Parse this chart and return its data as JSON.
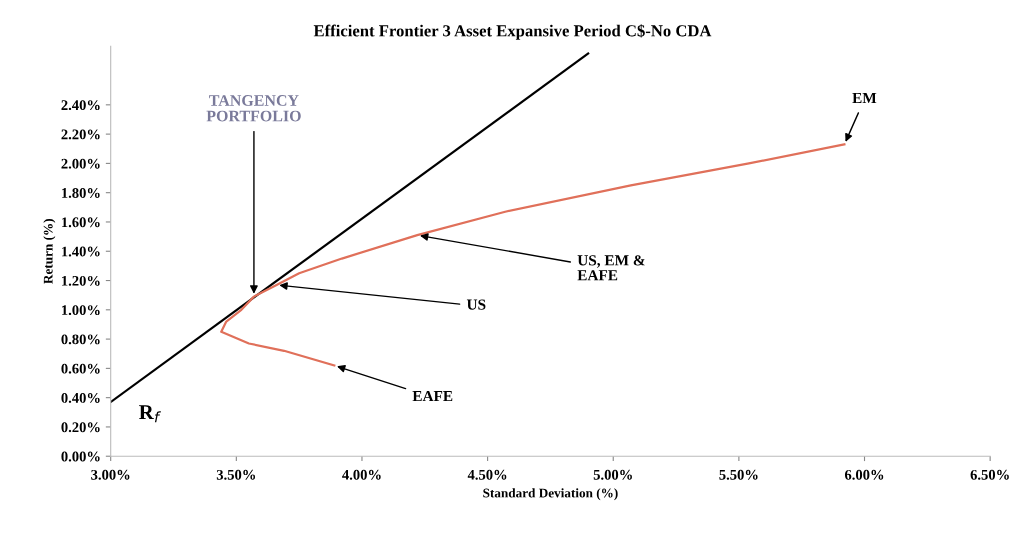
{
  "chart_data": {
    "type": "line",
    "title": "Efficient Frontier 3 Asset Expansive Period C$-No CDA",
    "xlabel": "Standard Deviation (%)",
    "ylabel": "Return (%)",
    "series": [
      {
        "color": "#000000",
        "x": [
          3.0,
          4.9
        ],
        "values": [
          0.37,
          2.75
        ]
      },
      {
        "color": "#e0705a",
        "x": [
          3.89,
          3.69,
          3.55,
          3.44,
          3.46,
          3.52,
          3.57,
          3.66,
          3.75,
          3.92,
          4.22,
          4.57,
          5.07,
          5.54,
          5.92
        ],
        "values": [
          0.62,
          0.72,
          0.77,
          0.85,
          0.92,
          1.0,
          1.09,
          1.17,
          1.25,
          1.35,
          1.51,
          1.67,
          1.85,
          2.0,
          2.13
        ]
      }
    ],
    "annotations": [
      {
        "text": "TANGENCY\nPORTFOLIO",
        "x": 3.57,
        "y": 1.09
      },
      {
        "text": "US",
        "x": 3.66,
        "y": 1.17
      },
      {
        "text": "US, EM &\nEAFE",
        "x": 4.22,
        "y": 1.51
      },
      {
        "text": "EAFE",
        "x": 3.89,
        "y": 0.62
      },
      {
        "text": "EM",
        "x": 5.92,
        "y": 2.13
      },
      {
        "text": "R$_{f}$",
        "x": 3.0,
        "y": 0.37
      }
    ],
    "xlim": [
      3.0,
      6.5
    ],
    "xticks": [
      {
        "value": 3.0,
        "label": "3.00%"
      },
      {
        "value": 3.5,
        "label": "3.50%"
      },
      {
        "value": 4.0,
        "label": "4.00%"
      },
      {
        "value": 4.5,
        "label": "4.50%"
      },
      {
        "value": 5.0,
        "label": "5.00%"
      },
      {
        "value": 5.5,
        "label": "5.50%"
      },
      {
        "value": 6.0,
        "label": "6.00%"
      },
      {
        "value": 6.5,
        "label": "6.50%"
      }
    ],
    "ylim": [
      0,
      2.8
    ],
    "yticks": [
      {
        "value": 0,
        "label": "0.00%"
      },
      {
        "value": 0.2,
        "label": "0.20%"
      },
      {
        "value": 0.4,
        "label": "0.40%"
      },
      {
        "value": 0.6,
        "label": "0.60%"
      },
      {
        "value": 0.8,
        "label": "0.80%"
      },
      {
        "value": 1.0,
        "label": "1.00%"
      },
      {
        "value": 1.2,
        "label": "1.20%"
      },
      {
        "value": 1.4,
        "label": "1.40%"
      },
      {
        "value": 1.6,
        "label": "1.60%"
      },
      {
        "value": 1.8,
        "label": "1.80%"
      },
      {
        "value": 2.0,
        "label": "2.00%"
      },
      {
        "value": 2.2,
        "label": "2.20%"
      },
      {
        "value": 2.4,
        "label": "2.40%"
      }
    ],
    "grid": false,
    "marker": "none",
    "line_style": "solid"
  }
}
